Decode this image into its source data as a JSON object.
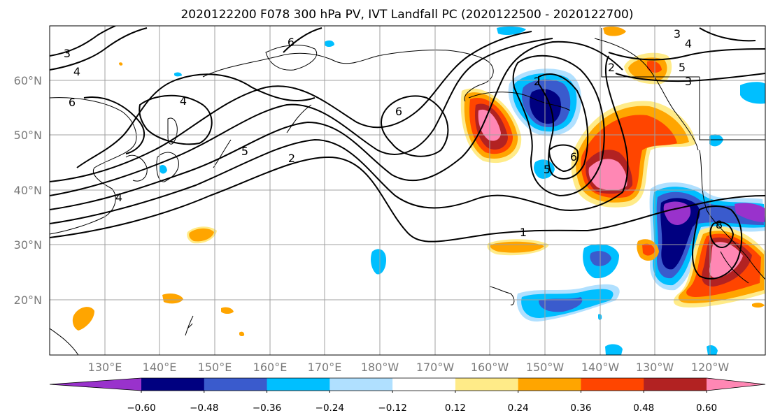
{
  "title": "2020122200 F078 300 hPa PV, IVT Landfall PC (2020122500 - 2020122700)",
  "lat_labels": [
    "60°N",
    "50°N",
    "40°N",
    "30°N",
    "20°N"
  ],
  "lon_labels": [
    "130°E",
    "140°E",
    "150°E",
    "160°E",
    "170°E",
    "180°W",
    "170°W",
    "160°W",
    "150°W",
    "140°W",
    "130°W",
    "120°W"
  ],
  "pv_contour_labels": [
    "3",
    "4",
    "6",
    "4",
    "5",
    "2",
    "4",
    "6",
    "6",
    "1",
    "2",
    "5",
    "6",
    "3",
    "4",
    "5",
    "3",
    "2",
    "8"
  ],
  "colorbar": {
    "colors": [
      "#9932cc",
      "#000080",
      "#3a5bcd",
      "#00bfff",
      "#b0e0ff",
      "#ffffff",
      "#ffeb88",
      "#ffa500",
      "#ff4500",
      "#b22222",
      "#ff87b4"
    ],
    "tick_labels": [
      "−0.60",
      "−0.48",
      "−0.36",
      "−0.24",
      "−0.12",
      "0.12",
      "0.24",
      "0.36",
      "0.48",
      "0.60"
    ]
  },
  "chart_data": {
    "type": "heatmap",
    "title": "2020122200 F078 300 hPa PV, IVT Landfall PC (2020122500 - 2020122700)",
    "variables": [
      "300 hPa PV (contours, PVU)",
      "IVT Landfall PC (shaded)"
    ],
    "lon_range_east_deg": [
      120,
      250
    ],
    "lat_range_deg": [
      10,
      70
    ],
    "shading_levels": [
      -0.6,
      -0.48,
      -0.36,
      -0.24,
      -0.12,
      0.12,
      0.24,
      0.36,
      0.48,
      0.6
    ],
    "shading_extend": "both",
    "pv_contour_values": [
      1,
      2,
      3,
      4,
      5,
      6,
      8
    ]
  }
}
